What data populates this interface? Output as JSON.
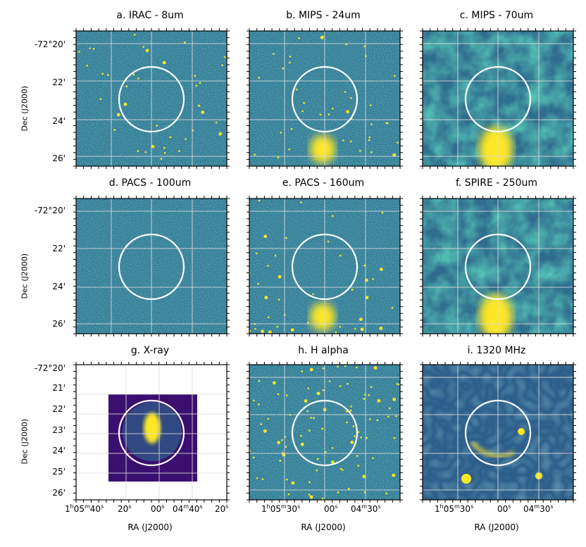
{
  "figure": {
    "panels": [
      {
        "title": "a. IRAC - 8um",
        "style": "noise",
        "blob": "none"
      },
      {
        "title": "b. MIPS - 24um",
        "style": "noise",
        "blob": "bottom"
      },
      {
        "title": "c. MIPS - 70um",
        "style": "smooth",
        "blob": "bottom-big"
      },
      {
        "title": "d. PACS - 100um",
        "style": "noise",
        "blob": "faint"
      },
      {
        "title": "e. PACS - 160um",
        "style": "noise",
        "blob": "bottom"
      },
      {
        "title": "f. SPIRE - 250um",
        "style": "smooth",
        "blob": "bottom-big"
      },
      {
        "title": "g. X-ray",
        "style": "xray",
        "blob": "center"
      },
      {
        "title": "h. H alpha",
        "style": "noise",
        "blob": "stars"
      },
      {
        "title": "i. 1320 MHz",
        "style": "radio",
        "blob": "ring"
      }
    ],
    "row_y_ticks": [
      "-72°20'",
      "22'",
      "24'",
      "26'"
    ],
    "xray_y_ticks": [
      "-72°20'",
      "21'",
      "22'",
      "23'",
      "24'",
      "25'",
      "26'"
    ],
    "y_axis_label": "Dec (J2000)",
    "x_axis_label": "RA (J2000)",
    "x_ticks_g": {
      "t1_h": "1",
      "t1_m": "05",
      "t1_s": "40",
      "t2": "20",
      "t3": "00",
      "t4_m": "04",
      "t4_s": "40",
      "t5": "20"
    },
    "x_ticks_h": {
      "t1_h": "1",
      "t1_m": "05",
      "t1_s": "30",
      "t2": "00",
      "t3_m": "04",
      "t3_s": "30"
    },
    "x_ticks_i": {
      "t1_h": "1",
      "t1_m": "05",
      "t1_s": "30",
      "t2": "00",
      "t3_m": "04",
      "t3_s": "30"
    },
    "colors": {
      "low": "#3b0f70",
      "mid": "#21918c",
      "high": "#fde725",
      "ring": "#ffffff",
      "grid": "#dddddd"
    }
  }
}
